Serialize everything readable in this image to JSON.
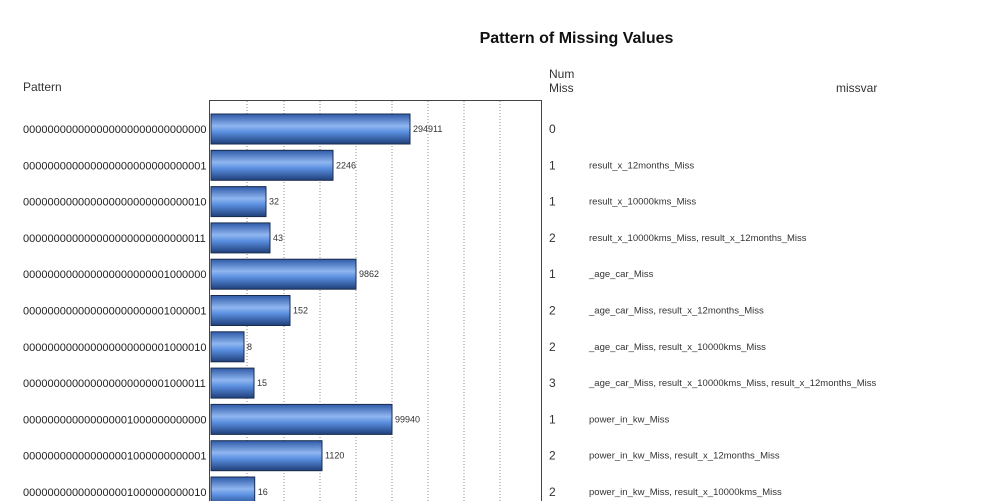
{
  "chart_data": {
    "type": "bar",
    "orientation": "horizontal",
    "title": "Pattern of Missing Values",
    "headers": {
      "pattern": "Pattern",
      "num_miss": [
        "Num",
        "Miss"
      ],
      "missvar": "missvar"
    },
    "grid": true,
    "colors": {
      "bar_light": "#8fb6f0",
      "bar_mid": "#4a7fd6",
      "bar_dark": "#1f3f7a",
      "bar_edge": "#1a2c4d"
    },
    "rows": [
      {
        "pattern": "000000000000000000000000000000",
        "value": 294911,
        "value_label": "294911",
        "num_miss": "0",
        "missvar": ""
      },
      {
        "pattern": "000000000000000000000000000001",
        "value": 2246,
        "value_label": "2246",
        "num_miss": "1",
        "missvar": "result_x_12months_Miss"
      },
      {
        "pattern": "000000000000000000000000000010",
        "value": 32,
        "value_label": "32",
        "num_miss": "1",
        "missvar": "result_x_10000kms_Miss"
      },
      {
        "pattern": "000000000000000000000000000011",
        "value": 43,
        "value_label": "43",
        "num_miss": "2",
        "missvar": "result_x_10000kms_Miss, result_x_12months_Miss"
      },
      {
        "pattern": "000000000000000000000001000000",
        "value": 9862,
        "value_label": "9862",
        "num_miss": "1",
        "missvar": "_age_car_Miss"
      },
      {
        "pattern": "000000000000000000000001000001",
        "value": 152,
        "value_label": "152",
        "num_miss": "2",
        "missvar": "_age_car_Miss, result_x_12months_Miss"
      },
      {
        "pattern": "000000000000000000000001000010",
        "value": 8,
        "value_label": "8",
        "num_miss": "2",
        "missvar": "_age_car_Miss, result_x_10000kms_Miss"
      },
      {
        "pattern": "000000000000000000000001000011",
        "value": 15,
        "value_label": "15",
        "num_miss": "3",
        "missvar": "_age_car_Miss, result_x_10000kms_Miss, result_x_12months_Miss"
      },
      {
        "pattern": "000000000000000001000000000000",
        "value": 99940,
        "value_label": "99940",
        "num_miss": "1",
        "missvar": "power_in_kw_Miss"
      },
      {
        "pattern": "000000000000000001000000000001",
        "value": 1120,
        "value_label": "1120",
        "num_miss": "2",
        "missvar": "power_in_kw_Miss, result_x_12months_Miss"
      },
      {
        "pattern": "000000000000000001000000000010",
        "value": 16,
        "value_label": "16",
        "num_miss": "2",
        "missvar": "power_in_kw_Miss, result_x_10000kms_Miss"
      }
    ]
  }
}
